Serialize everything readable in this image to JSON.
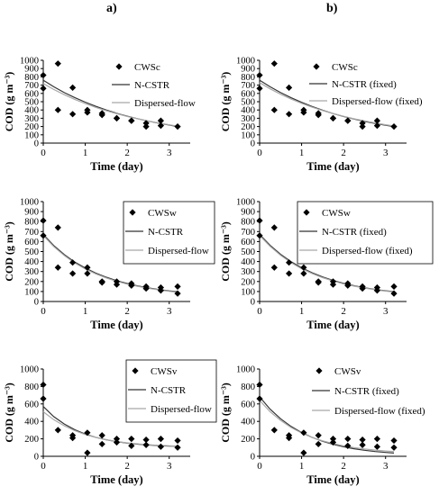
{
  "panel_labels": [
    "a)",
    "b)"
  ],
  "chart_data": [
    {
      "type": "scatter",
      "id": "a1",
      "xlabel": "Time (day)",
      "ylabel": "COD (g m⁻³)",
      "xlim": [
        0,
        3.5
      ],
      "ylim": [
        0,
        1000
      ],
      "xticks": [
        0,
        1,
        2,
        3
      ],
      "yticks": [
        0,
        100,
        200,
        300,
        400,
        500,
        600,
        700,
        800,
        900,
        1000
      ],
      "series": [
        {
          "name": "CWSc",
          "kind": "points",
          "x": [
            0,
            0,
            0.35,
            0.35,
            0.7,
            0.7,
            1.05,
            1.05,
            1.4,
            1.4,
            1.75,
            1.75,
            2.1,
            2.1,
            2.45,
            2.45,
            2.8,
            2.8,
            3.2
          ],
          "y": [
            820,
            660,
            960,
            400,
            670,
            350,
            400,
            370,
            360,
            340,
            300,
            300,
            270,
            270,
            240,
            200,
            270,
            210,
            200
          ]
        },
        {
          "name": "N-CSTR",
          "kind": "line",
          "color": "#333333",
          "x": [
            0,
            0.25,
            0.5,
            0.75,
            1,
            1.25,
            1.5,
            1.75,
            2,
            2.25,
            2.5,
            2.75,
            3,
            3.2
          ],
          "y": [
            760,
            680,
            610,
            550,
            495,
            445,
            400,
            360,
            325,
            295,
            265,
            240,
            218,
            200
          ]
        },
        {
          "name": "Dispersed-flow",
          "kind": "line",
          "color": "#a8a8a8",
          "x": [
            0,
            0.25,
            0.5,
            0.75,
            1,
            1.25,
            1.5,
            1.75,
            2,
            2.25,
            2.5,
            2.75,
            3,
            3.2
          ],
          "y": [
            720,
            648,
            585,
            528,
            477,
            432,
            391,
            355,
            322,
            293,
            266,
            242,
            221,
            205
          ]
        }
      ]
    },
    {
      "type": "scatter",
      "id": "b1",
      "xlabel": "Time (day)",
      "ylabel": "COD (g m⁻³)",
      "xlim": [
        0,
        3.5
      ],
      "ylim": [
        0,
        1000
      ],
      "xticks": [
        0,
        1,
        2,
        3
      ],
      "yticks": [
        0,
        100,
        200,
        300,
        400,
        500,
        600,
        700,
        800,
        900,
        1000
      ],
      "series": [
        {
          "name": "CWSc",
          "kind": "points",
          "x": [
            0,
            0,
            0.35,
            0.35,
            0.7,
            0.7,
            1.05,
            1.05,
            1.4,
            1.4,
            1.75,
            1.75,
            2.1,
            2.1,
            2.45,
            2.45,
            2.8,
            2.8,
            3.2
          ],
          "y": [
            820,
            660,
            960,
            400,
            670,
            350,
            400,
            370,
            360,
            340,
            300,
            300,
            270,
            270,
            240,
            200,
            270,
            210,
            200
          ]
        },
        {
          "name": "N-CSTR (fixed)",
          "kind": "line",
          "color": "#333333",
          "x": [
            0,
            0.25,
            0.5,
            0.75,
            1,
            1.25,
            1.5,
            1.75,
            2,
            2.25,
            2.5,
            2.75,
            3,
            3.2
          ],
          "y": [
            760,
            680,
            610,
            548,
            492,
            442,
            397,
            357,
            322,
            290,
            262,
            237,
            215,
            200
          ]
        },
        {
          "name": "Dispersed-flow (fixed)",
          "kind": "line",
          "color": "#a8a8a8",
          "x": [
            0,
            0.25,
            0.5,
            0.75,
            1,
            1.25,
            1.5,
            1.75,
            2,
            2.25,
            2.5,
            2.75,
            3,
            3.2
          ],
          "y": [
            730,
            655,
            590,
            532,
            480,
            434,
            393,
            357,
            324,
            294,
            268,
            244,
            222,
            206
          ]
        }
      ]
    },
    {
      "type": "scatter",
      "id": "a2",
      "xlabel": "Time (day)",
      "ylabel": "COD (g m⁻³)",
      "xlim": [
        0,
        3.5
      ],
      "ylim": [
        0,
        1000
      ],
      "xticks": [
        0,
        1,
        2,
        3
      ],
      "yticks": [
        0,
        100,
        200,
        300,
        400,
        500,
        600,
        700,
        800,
        900,
        1000
      ],
      "series": [
        {
          "name": "CWSw",
          "kind": "points",
          "x": [
            0,
            0,
            0.35,
            0.35,
            0.7,
            0.7,
            1.05,
            1.05,
            1.4,
            1.4,
            1.75,
            1.75,
            2.1,
            2.1,
            2.45,
            2.45,
            2.8,
            2.8,
            3.2,
            3.2
          ],
          "y": [
            810,
            660,
            740,
            340,
            390,
            280,
            340,
            280,
            200,
            190,
            200,
            170,
            180,
            160,
            150,
            130,
            140,
            110,
            150,
            80
          ]
        },
        {
          "name": "N-CSTR",
          "kind": "line",
          "color": "#333333",
          "x": [
            0,
            0.25,
            0.5,
            0.75,
            1,
            1.25,
            1.5,
            1.75,
            2,
            2.25,
            2.5,
            2.75,
            3,
            3.2
          ],
          "y": [
            670,
            560,
            470,
            395,
            335,
            285,
            243,
            208,
            180,
            156,
            136,
            120,
            106,
            98
          ]
        },
        {
          "name": "Dispersed-flow",
          "kind": "line",
          "color": "#a8a8a8",
          "x": [
            0,
            0.25,
            0.5,
            0.75,
            1,
            1.25,
            1.5,
            1.75,
            2,
            2.25,
            2.5,
            2.75,
            3,
            3.2
          ],
          "y": [
            660,
            550,
            460,
            385,
            325,
            277,
            236,
            202,
            174,
            151,
            132,
            116,
            102,
            94
          ]
        }
      ]
    },
    {
      "type": "scatter",
      "id": "b2",
      "xlabel": "Time (day)",
      "ylabel": "COD (g m⁻³)",
      "xlim": [
        0,
        3.5
      ],
      "ylim": [
        0,
        1000
      ],
      "xticks": [
        0,
        1,
        2,
        3
      ],
      "yticks": [
        0,
        100,
        200,
        300,
        400,
        500,
        600,
        700,
        800,
        900,
        1000
      ],
      "series": [
        {
          "name": "CWSw",
          "kind": "points",
          "x": [
            0,
            0,
            0.35,
            0.35,
            0.7,
            0.7,
            1.05,
            1.05,
            1.4,
            1.4,
            1.75,
            1.75,
            2.1,
            2.1,
            2.45,
            2.45,
            2.8,
            2.8,
            3.2,
            3.2
          ],
          "y": [
            810,
            660,
            740,
            340,
            390,
            280,
            340,
            280,
            200,
            190,
            200,
            170,
            180,
            160,
            150,
            130,
            140,
            110,
            150,
            80
          ]
        },
        {
          "name": "N-CSTR (fixed)",
          "kind": "line",
          "color": "#333333",
          "x": [
            0,
            0.25,
            0.5,
            0.75,
            1,
            1.25,
            1.5,
            1.75,
            2,
            2.25,
            2.5,
            2.75,
            3,
            3.2
          ],
          "y": [
            670,
            562,
            472,
            398,
            338,
            288,
            246,
            211,
            182,
            158,
            138,
            121,
            107,
            99
          ]
        },
        {
          "name": "Dispersed-flow (fixed)",
          "kind": "line",
          "color": "#a8a8a8",
          "x": [
            0,
            0.25,
            0.5,
            0.75,
            1,
            1.25,
            1.5,
            1.75,
            2,
            2.25,
            2.5,
            2.75,
            3,
            3.2
          ],
          "y": [
            660,
            552,
            462,
            388,
            328,
            280,
            239,
            205,
            177,
            154,
            134,
            118,
            104,
            96
          ]
        }
      ]
    },
    {
      "type": "scatter",
      "id": "a3",
      "xlabel": "Time (day)",
      "ylabel": "COD (g m⁻³)",
      "xlim": [
        0,
        3.5
      ],
      "ylim": [
        0,
        1000
      ],
      "xticks": [
        0,
        1,
        2,
        3
      ],
      "yticks": [
        0,
        200,
        400,
        600,
        800,
        1000
      ],
      "series": [
        {
          "name": "CWSv",
          "kind": "points",
          "x": [
            0,
            0,
            0.35,
            0.7,
            0.7,
            1.05,
            1.05,
            1.4,
            1.4,
            1.75,
            1.75,
            2.1,
            2.1,
            2.45,
            2.45,
            2.8,
            2.8,
            3.2,
            3.2
          ],
          "y": [
            820,
            660,
            300,
            240,
            210,
            270,
            40,
            240,
            140,
            200,
            160,
            200,
            120,
            190,
            130,
            200,
            110,
            180,
            100
          ]
        },
        {
          "name": "N-CSTR",
          "kind": "line",
          "color": "#333333",
          "x": [
            0,
            0.25,
            0.5,
            0.75,
            1,
            1.25,
            1.5,
            1.75,
            2,
            2.25,
            2.5,
            2.75,
            3,
            3.2
          ],
          "y": [
            570,
            455,
            370,
            305,
            255,
            218,
            190,
            168,
            151,
            139,
            130,
            123,
            118,
            115
          ]
        },
        {
          "name": "Dispersed-flow",
          "kind": "line",
          "color": "#a8a8a8",
          "x": [
            0,
            0.25,
            0.5,
            0.75,
            1,
            1.25,
            1.5,
            1.75,
            2,
            2.25,
            2.5,
            2.75,
            3,
            3.2
          ],
          "y": [
            510,
            420,
            350,
            294,
            250,
            216,
            190,
            170,
            154,
            142,
            133,
            126,
            121,
            118
          ]
        }
      ]
    },
    {
      "type": "scatter",
      "id": "b3",
      "xlabel": "Time (day)",
      "ylabel": "COD (g m⁻³)",
      "xlim": [
        0,
        3.5
      ],
      "ylim": [
        0,
        1000
      ],
      "xticks": [
        0,
        1,
        2,
        3
      ],
      "yticks": [
        0,
        200,
        400,
        600,
        800,
        1000
      ],
      "series": [
        {
          "name": "CWSv",
          "kind": "points",
          "x": [
            0,
            0,
            0.35,
            0.7,
            0.7,
            1.05,
            1.05,
            1.4,
            1.4,
            1.75,
            1.75,
            2.1,
            2.1,
            2.45,
            2.45,
            2.8,
            2.8,
            3.2,
            3.2
          ],
          "y": [
            820,
            660,
            300,
            240,
            210,
            270,
            40,
            240,
            140,
            200,
            160,
            200,
            120,
            190,
            130,
            200,
            110,
            180,
            100
          ]
        },
        {
          "name": "N-CSTR (fixed)",
          "kind": "line",
          "color": "#333333",
          "x": [
            0,
            0.25,
            0.5,
            0.75,
            1,
            1.25,
            1.5,
            1.75,
            2,
            2.25,
            2.5,
            2.75,
            3,
            3.2
          ],
          "y": [
            680,
            540,
            430,
            342,
            272,
            216,
            172,
            137,
            109,
            87,
            69,
            55,
            44,
            37
          ]
        },
        {
          "name": "Dispersed-flow (fixed)",
          "kind": "line",
          "color": "#a8a8a8",
          "x": [
            0,
            0.25,
            0.5,
            0.75,
            1,
            1.25,
            1.5,
            1.75,
            2,
            2.25,
            2.5,
            2.75,
            3,
            3.2
          ],
          "y": [
            640,
            510,
            410,
            330,
            267,
            217,
            177,
            146,
            120,
            100,
            84,
            71,
            61,
            55
          ]
        }
      ]
    }
  ]
}
